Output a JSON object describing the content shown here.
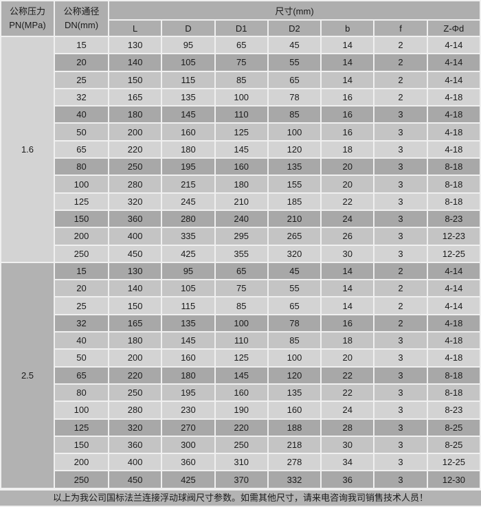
{
  "table": {
    "header": {
      "pressure_line1": "公称压力",
      "pressure_line2": "PN(MPa)",
      "dn_line1": "公称通径",
      "dn_line2": "DN(mm)",
      "size_group": "尺寸(mm)",
      "size_cols": [
        "L",
        "D",
        "D1",
        "D2",
        "b",
        "f",
        "Z-Φd"
      ]
    },
    "sections": [
      {
        "pn": "1.6",
        "rows": [
          {
            "dn": "15",
            "values": [
              "130",
              "95",
              "65",
              "45",
              "14",
              "2",
              "4-14"
            ],
            "shade": "light"
          },
          {
            "dn": "20",
            "values": [
              "140",
              "105",
              "75",
              "55",
              "14",
              "2",
              "4-14"
            ],
            "shade": "dark"
          },
          {
            "dn": "25",
            "values": [
              "150",
              "115",
              "85",
              "65",
              "14",
              "2",
              "4-14"
            ],
            "shade": "medium"
          },
          {
            "dn": "32",
            "values": [
              "165",
              "135",
              "100",
              "78",
              "16",
              "2",
              "4-18"
            ],
            "shade": "light"
          },
          {
            "dn": "40",
            "values": [
              "180",
              "145",
              "110",
              "85",
              "16",
              "3",
              "4-18"
            ],
            "shade": "dark"
          },
          {
            "dn": "50",
            "values": [
              "200",
              "160",
              "125",
              "100",
              "16",
              "3",
              "4-18"
            ],
            "shade": "medium"
          },
          {
            "dn": "65",
            "values": [
              "220",
              "180",
              "145",
              "120",
              "18",
              "3",
              "4-18"
            ],
            "shade": "light"
          },
          {
            "dn": "80",
            "values": [
              "250",
              "195",
              "160",
              "135",
              "20",
              "3",
              "8-18"
            ],
            "shade": "dark"
          },
          {
            "dn": "100",
            "values": [
              "280",
              "215",
              "180",
              "155",
              "20",
              "3",
              "8-18"
            ],
            "shade": "medium"
          },
          {
            "dn": "125",
            "values": [
              "320",
              "245",
              "210",
              "185",
              "22",
              "3",
              "8-18"
            ],
            "shade": "light"
          },
          {
            "dn": "150",
            "values": [
              "360",
              "280",
              "240",
              "210",
              "24",
              "3",
              "8-23"
            ],
            "shade": "dark"
          },
          {
            "dn": "200",
            "values": [
              "400",
              "335",
              "295",
              "265",
              "26",
              "3",
              "12-23"
            ],
            "shade": "medium"
          },
          {
            "dn": "250",
            "values": [
              "450",
              "425",
              "355",
              "320",
              "30",
              "3",
              "12-25"
            ],
            "shade": "light"
          }
        ]
      },
      {
        "pn": "2.5",
        "rows": [
          {
            "dn": "15",
            "values": [
              "130",
              "95",
              "65",
              "45",
              "14",
              "2",
              "4-14"
            ],
            "shade": "dark"
          },
          {
            "dn": "20",
            "values": [
              "140",
              "105",
              "75",
              "55",
              "14",
              "2",
              "4-14"
            ],
            "shade": "medium"
          },
          {
            "dn": "25",
            "values": [
              "150",
              "115",
              "85",
              "65",
              "14",
              "2",
              "4-14"
            ],
            "shade": "light"
          },
          {
            "dn": "32",
            "values": [
              "165",
              "135",
              "100",
              "78",
              "16",
              "2",
              "4-18"
            ],
            "shade": "dark"
          },
          {
            "dn": "40",
            "values": [
              "180",
              "145",
              "110",
              "85",
              "18",
              "3",
              "4-18"
            ],
            "shade": "medium"
          },
          {
            "dn": "50",
            "values": [
              "200",
              "160",
              "125",
              "100",
              "20",
              "3",
              "4-18"
            ],
            "shade": "light"
          },
          {
            "dn": "65",
            "values": [
              "220",
              "180",
              "145",
              "120",
              "22",
              "3",
              "8-18"
            ],
            "shade": "dark"
          },
          {
            "dn": "80",
            "values": [
              "250",
              "195",
              "160",
              "135",
              "22",
              "3",
              "8-18"
            ],
            "shade": "medium"
          },
          {
            "dn": "100",
            "values": [
              "280",
              "230",
              "190",
              "160",
              "24",
              "3",
              "8-23"
            ],
            "shade": "light"
          },
          {
            "dn": "125",
            "values": [
              "320",
              "270",
              "220",
              "188",
              "28",
              "3",
              "8-25"
            ],
            "shade": "dark"
          },
          {
            "dn": "150",
            "values": [
              "360",
              "300",
              "250",
              "218",
              "30",
              "3",
              "8-25"
            ],
            "shade": "medium"
          },
          {
            "dn": "200",
            "values": [
              "400",
              "360",
              "310",
              "278",
              "34",
              "3",
              "12-25"
            ],
            "shade": "light"
          },
          {
            "dn": "250",
            "values": [
              "450",
              "425",
              "370",
              "332",
              "36",
              "3",
              "12-30"
            ],
            "shade": "dark"
          }
        ]
      }
    ]
  },
  "footer": {
    "note": "以上为我公司国标法兰连接浮动球阀尺寸参数。如需其他尺寸，请来电咨询我司销售技术人员！"
  },
  "colors": {
    "row_light": "#d3d3d3",
    "row_dark": "#a8a8a8",
    "row_medium": "#c4c4c4",
    "header_bg": "#aeaeae",
    "pn_16_bg": "#d3d3d3",
    "pn_25_bg": "#b2b2b2",
    "footer_bg": "#b3b3b3",
    "border": "#f0f0f0",
    "text": "#1a1a1a",
    "page_bg": "#d3d3d3"
  }
}
